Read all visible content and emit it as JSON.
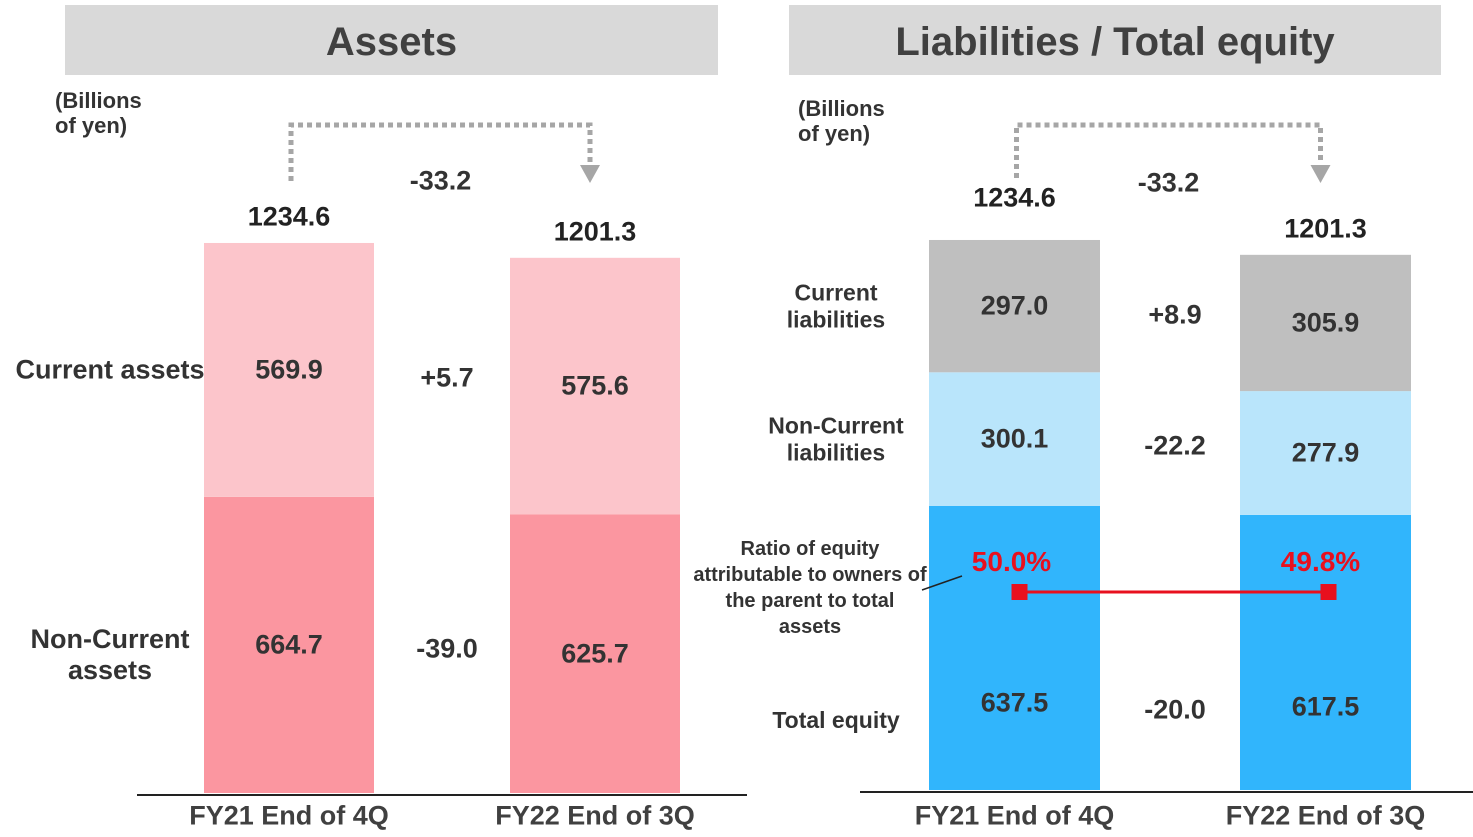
{
  "chart_data": [
    {
      "type": "stacked_bar",
      "title": "Assets",
      "unit": "(Billions of yen)",
      "categories": [
        "FY21 End of 4Q",
        "FY22 End of 3Q"
      ],
      "totals": [
        1234.6,
        1201.3
      ],
      "total_change": -33.2,
      "series": [
        {
          "name": "Non-Current assets",
          "color": "#fb96a0",
          "values": [
            664.7,
            625.7
          ],
          "change": -39.0,
          "change_label": "-39.0"
        },
        {
          "name": "Current assets",
          "color": "#fcc5cb",
          "values": [
            569.9,
            575.6
          ],
          "change": 5.7,
          "change_label": "+5.7"
        }
      ]
    },
    {
      "type": "stacked_bar",
      "title": "Liabilities / Total equity",
      "unit": "(Billions of yen)",
      "categories": [
        "FY21 End of 4Q",
        "FY22 End of 3Q"
      ],
      "totals": [
        1234.6,
        1201.3
      ],
      "total_change": -33.2,
      "series": [
        {
          "name": "Total equity",
          "color": "#31b5fc",
          "values": [
            637.5,
            617.5
          ],
          "change": -20.0,
          "change_label": "-20.0"
        },
        {
          "name": "Non-Current liabilities",
          "color": "#b9e5fb",
          "values": [
            300.1,
            277.9
          ],
          "change": -22.2,
          "change_label": "-22.2"
        },
        {
          "name": "Current liabilities",
          "color": "#bfbfbf",
          "values": [
            297.0,
            305.9
          ],
          "value_labels": [
            "297.0",
            "305.9"
          ],
          "change": 8.9,
          "change_label": "+8.9"
        }
      ],
      "ratio": {
        "name": "Ratio of equity attributable to owners of the parent to total assets",
        "color": "#e8101e",
        "values": [
          50.0,
          49.8
        ],
        "value_labels": [
          "50.0%",
          "49.8%"
        ]
      }
    }
  ]
}
